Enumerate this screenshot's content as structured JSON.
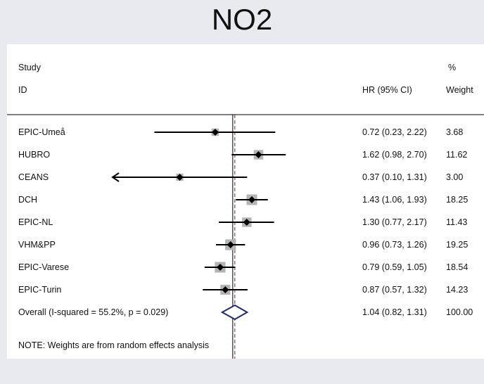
{
  "title": "NO2",
  "headers": {
    "study": "Study",
    "id": "ID",
    "hr": "HR (95% CI)",
    "pct": "%",
    "weight": "Weight"
  },
  "note": "NOTE: Weights are from random effects analysis",
  "chart_data": {
    "type": "forest",
    "scale": "log",
    "xlim": [
      0.105,
      9.56
    ],
    "xticks": [
      ".105",
      "1",
      "9.56"
    ],
    "null_line": 1,
    "overall_line": 1.04,
    "studies": [
      {
        "name": "EPIC-Umeå",
        "hr": 0.72,
        "lo": 0.23,
        "hi": 2.22,
        "hr_text": "0.72 (0.23, 2.22)",
        "weight": 3.68,
        "weight_text": "3.68"
      },
      {
        "name": "HUBRO",
        "hr": 1.62,
        "lo": 0.98,
        "hi": 2.7,
        "hr_text": "1.62 (0.98, 2.70)",
        "weight": 11.62,
        "weight_text": "11.62"
      },
      {
        "name": "CEANS",
        "hr": 0.37,
        "lo": 0.1,
        "hi": 1.31,
        "hr_text": "0.37 (0.10, 1.31)",
        "weight": 3.0,
        "weight_text": "3.00"
      },
      {
        "name": "DCH",
        "hr": 1.43,
        "lo": 1.06,
        "hi": 1.93,
        "hr_text": "1.43 (1.06, 1.93)",
        "weight": 18.25,
        "weight_text": "18.25"
      },
      {
        "name": "EPIC-NL",
        "hr": 1.3,
        "lo": 0.77,
        "hi": 2.17,
        "hr_text": "1.30 (0.77, 2.17)",
        "weight": 11.43,
        "weight_text": "11.43"
      },
      {
        "name": "VHM&PP",
        "hr": 0.96,
        "lo": 0.73,
        "hi": 1.26,
        "hr_text": "0.96 (0.73, 1.26)",
        "weight": 19.25,
        "weight_text": "19.25"
      },
      {
        "name": "EPIC-Varese",
        "hr": 0.79,
        "lo": 0.59,
        "hi": 1.05,
        "hr_text": "0.79 (0.59, 1.05)",
        "weight": 18.54,
        "weight_text": "18.54"
      },
      {
        "name": "EPIC-Turin",
        "hr": 0.87,
        "lo": 0.57,
        "hi": 1.32,
        "hr_text": "0.87 (0.57, 1.32)",
        "weight": 14.23,
        "weight_text": "14.23"
      }
    ],
    "overall": {
      "name": "Overall  (I-squared = 55.2%, p = 0.029)",
      "hr": 1.04,
      "lo": 0.82,
      "hi": 1.31,
      "hr_text": "1.04 (0.82, 1.31)",
      "weight_text": "100.00"
    },
    "colors": {
      "marker": "#000000",
      "box": "#b4b4b4",
      "diamond": "#1f2a6e",
      "overall_line": "#8b1a1a"
    }
  }
}
